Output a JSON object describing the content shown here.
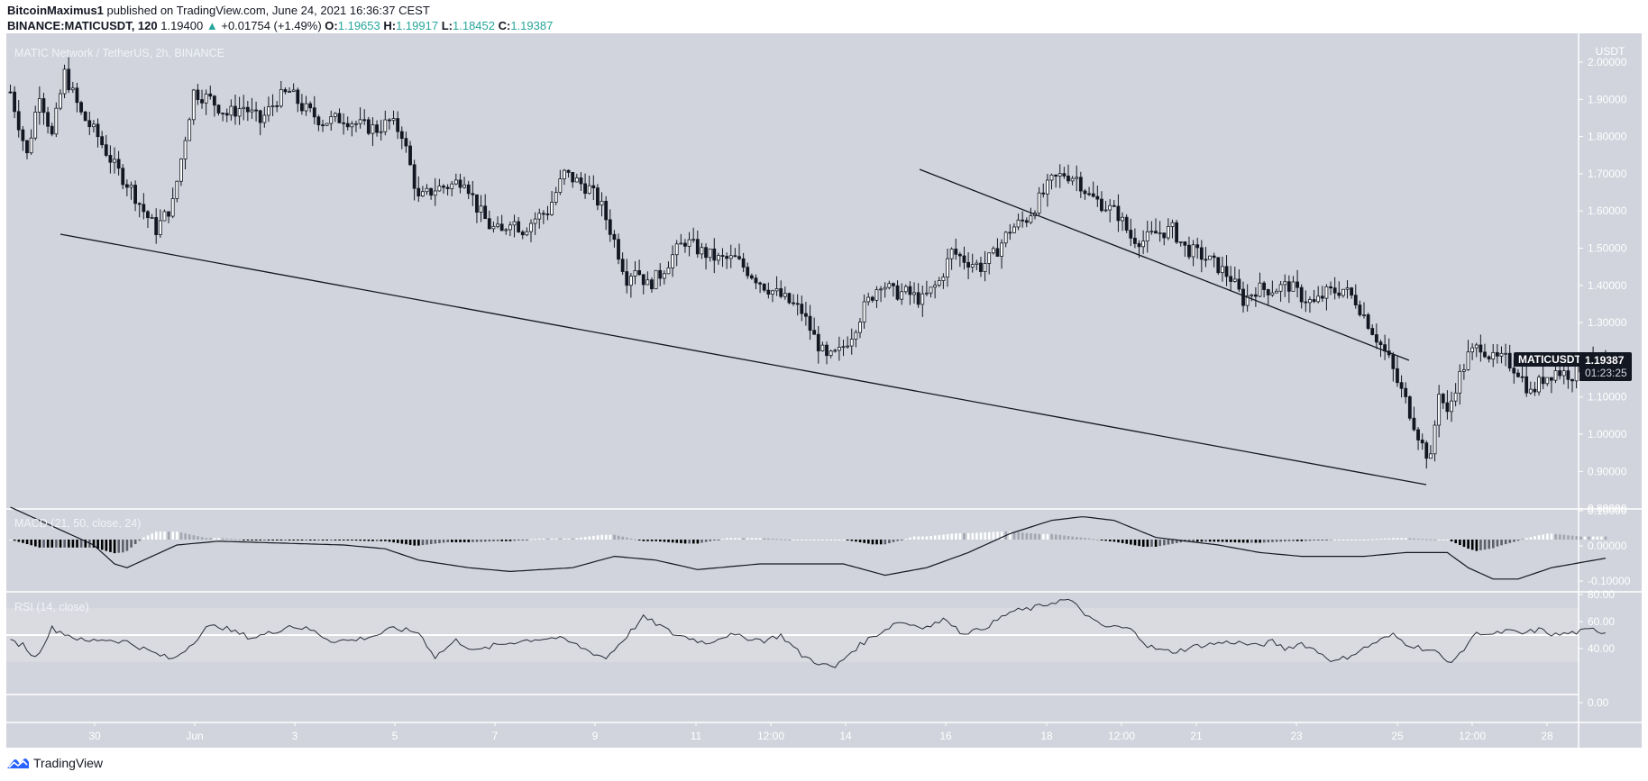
{
  "header": {
    "author": "BitcoinMaximus1",
    "published_text": "published on TradingView.com, June 24, 2021 16:36:37 CEST",
    "symbol_line": "BINANCE:MATICUSDT, 120",
    "last": "1.19400",
    "change_arrow": "▲",
    "change": "+0.01754 (+1.49%)",
    "o_label": "O:",
    "o": "1.19653",
    "h_label": "H:",
    "h": "1.19917",
    "l_label": "L:",
    "l": "1.18452",
    "c_label": "C:",
    "c": "1.19387"
  },
  "chart_title": "MATIC Network / TetherUS, 2h, BINANCE",
  "macd_label": "MACD (21, 50, close, 24)",
  "rsi_label": "RSI (14, close)",
  "symbol_tag": "MATICUSDT",
  "price_tag": {
    "price": "1.19387",
    "countdown": "01:23:25"
  },
  "footer": {
    "brand": "TradingView"
  },
  "colors": {
    "pane_bg": "#d1d4dc",
    "rsi_band": "#d9dbe1",
    "candle_up_fill": "#ffffff",
    "candle_down_fill": "#131722",
    "line": "#131722",
    "grid_sep": "#ffffff",
    "axis_text": "#ffffff",
    "logo_blue": "#2962ff"
  },
  "chart_data": [
    {
      "type": "candlestick",
      "title": "MATIC Network / TetherUS, 2h, BINANCE",
      "ylabel": "USDT",
      "ylim": [
        0.78,
        2.02
      ],
      "yticks": [
        "2.00000",
        "1.90000",
        "1.80000",
        "1.70000",
        "1.60000",
        "1.50000",
        "1.40000",
        "1.30000",
        "1.20000",
        "1.10000",
        "1.00000",
        "0.90000",
        "0.80000"
      ],
      "xticks": [
        "30",
        "Jun",
        "3",
        "5",
        "7",
        "9",
        "11",
        "12:00",
        "14",
        "16",
        "18",
        "12:00",
        "21",
        "23",
        "25",
        "12:00",
        "28"
      ],
      "close_path": [
        [
          0,
          1.92
        ],
        [
          8,
          1.75
        ],
        [
          14,
          1.92
        ],
        [
          20,
          1.8
        ],
        [
          26,
          1.97
        ],
        [
          34,
          1.86
        ],
        [
          42,
          1.8
        ],
        [
          50,
          1.72
        ],
        [
          58,
          1.66
        ],
        [
          64,
          1.6
        ],
        [
          70,
          1.55
        ],
        [
          78,
          1.62
        ],
        [
          84,
          1.8
        ],
        [
          88,
          1.92
        ],
        [
          96,
          1.9
        ],
        [
          104,
          1.86
        ],
        [
          112,
          1.88
        ],
        [
          120,
          1.84
        ],
        [
          128,
          1.9
        ],
        [
          134,
          1.92
        ],
        [
          140,
          1.88
        ],
        [
          150,
          1.84
        ],
        [
          160,
          1.85
        ],
        [
          168,
          1.83
        ],
        [
          176,
          1.82
        ],
        [
          182,
          1.84
        ],
        [
          188,
          1.81
        ],
        [
          196,
          1.63
        ],
        [
          204,
          1.66
        ],
        [
          212,
          1.67
        ],
        [
          218,
          1.69
        ],
        [
          224,
          1.61
        ],
        [
          230,
          1.56
        ],
        [
          236,
          1.54
        ],
        [
          240,
          1.58
        ],
        [
          246,
          1.55
        ],
        [
          252,
          1.58
        ],
        [
          258,
          1.6
        ],
        [
          266,
          1.7
        ],
        [
          272,
          1.68
        ],
        [
          278,
          1.66
        ],
        [
          284,
          1.61
        ],
        [
          290,
          1.52
        ],
        [
          296,
          1.42
        ],
        [
          300,
          1.45
        ],
        [
          306,
          1.4
        ],
        [
          312,
          1.43
        ],
        [
          318,
          1.48
        ],
        [
          324,
          1.52
        ],
        [
          332,
          1.49
        ],
        [
          340,
          1.47
        ],
        [
          348,
          1.47
        ],
        [
          354,
          1.44
        ],
        [
          362,
          1.4
        ],
        [
          370,
          1.37
        ],
        [
          380,
          1.33
        ],
        [
          386,
          1.26
        ],
        [
          392,
          1.2
        ],
        [
          398,
          1.22
        ],
        [
          404,
          1.27
        ],
        [
          410,
          1.34
        ],
        [
          418,
          1.41
        ],
        [
          424,
          1.38
        ],
        [
          430,
          1.38
        ],
        [
          438,
          1.36
        ],
        [
          446,
          1.41
        ],
        [
          452,
          1.49
        ],
        [
          458,
          1.47
        ],
        [
          466,
          1.45
        ],
        [
          472,
          1.48
        ],
        [
          480,
          1.55
        ],
        [
          488,
          1.58
        ],
        [
          494,
          1.63
        ],
        [
          500,
          1.68
        ],
        [
          506,
          1.7
        ],
        [
          512,
          1.69
        ],
        [
          518,
          1.64
        ],
        [
          524,
          1.62
        ],
        [
          532,
          1.59
        ],
        [
          538,
          1.53
        ],
        [
          544,
          1.52
        ],
        [
          550,
          1.54
        ],
        [
          558,
          1.55
        ],
        [
          564,
          1.5
        ],
        [
          572,
          1.48
        ],
        [
          580,
          1.45
        ],
        [
          586,
          1.42
        ],
        [
          592,
          1.36
        ],
        [
          598,
          1.39
        ],
        [
          606,
          1.39
        ],
        [
          614,
          1.4
        ],
        [
          620,
          1.37
        ],
        [
          626,
          1.35
        ],
        [
          632,
          1.38
        ],
        [
          640,
          1.39
        ],
        [
          646,
          1.36
        ],
        [
          652,
          1.3
        ],
        [
          658,
          1.24
        ],
        [
          662,
          1.2
        ],
        [
          666,
          1.14
        ],
        [
          670,
          1.09
        ],
        [
          674,
          1.03
        ],
        [
          678,
          0.97
        ],
        [
          682,
          0.93
        ],
        [
          686,
          1.12
        ],
        [
          690,
          1.05
        ],
        [
          694,
          1.13
        ],
        [
          700,
          1.21
        ],
        [
          706,
          1.24
        ],
        [
          712,
          1.2
        ],
        [
          718,
          1.2
        ],
        [
          724,
          1.17
        ],
        [
          730,
          1.11
        ],
        [
          736,
          1.15
        ],
        [
          742,
          1.17
        ],
        [
          750,
          1.16
        ],
        [
          756,
          1.19
        ],
        [
          762,
          1.19
        ],
        [
          766,
          1.19
        ]
      ],
      "trendlines": [
        {
          "name": "support",
          "from": [
            "May 29",
            1.53
          ],
          "to": [
            "Jun 25",
            0.85
          ]
        },
        {
          "name": "resistance",
          "from": [
            "Jun 15",
            1.71
          ],
          "to": [
            "Jun 24",
            1.19
          ]
        }
      ],
      "last_price": 1.19387
    },
    {
      "type": "line+histogram",
      "title": "MACD (21, 50, close, 24)",
      "ylim": [
        -0.16,
        0.11
      ],
      "yticks": [
        "0.10000",
        "0.00000",
        "-0.10000"
      ],
      "macd_path": [
        [
          0,
          0.1
        ],
        [
          20,
          0.05
        ],
        [
          40,
          0.0
        ],
        [
          50,
          -0.05
        ],
        [
          56,
          -0.06
        ],
        [
          64,
          -0.04
        ],
        [
          80,
          0.0
        ],
        [
          100,
          0.01
        ],
        [
          130,
          0.005
        ],
        [
          160,
          0.0
        ],
        [
          180,
          -0.01
        ],
        [
          196,
          -0.04
        ],
        [
          220,
          -0.06
        ],
        [
          240,
          -0.07
        ],
        [
          270,
          -0.06
        ],
        [
          290,
          -0.03
        ],
        [
          310,
          -0.04
        ],
        [
          330,
          -0.065
        ],
        [
          360,
          -0.05
        ],
        [
          400,
          -0.05
        ],
        [
          420,
          -0.08
        ],
        [
          440,
          -0.06
        ],
        [
          460,
          -0.02
        ],
        [
          480,
          0.03
        ],
        [
          500,
          0.065
        ],
        [
          515,
          0.075
        ],
        [
          530,
          0.065
        ],
        [
          550,
          0.02
        ],
        [
          580,
          0.0
        ],
        [
          600,
          -0.02
        ],
        [
          620,
          -0.03
        ],
        [
          650,
          -0.03
        ],
        [
          670,
          -0.02
        ],
        [
          690,
          -0.02
        ],
        [
          700,
          -0.06
        ],
        [
          712,
          -0.09
        ],
        [
          724,
          -0.09
        ],
        [
          740,
          -0.06
        ],
        [
          766,
          -0.035
        ]
      ],
      "signal_offset_note": "histogram = macd - signal"
    },
    {
      "type": "line",
      "title": "RSI (14, close)",
      "ylim": [
        0,
        80
      ],
      "yticks": [
        "80.00",
        "60.00",
        "40.00",
        "0.00"
      ],
      "bands": {
        "upper": 70,
        "middle": 50,
        "lower": 30
      },
      "rsi_path": [
        [
          0,
          45
        ],
        [
          6,
          43
        ],
        [
          12,
          33
        ],
        [
          20,
          55
        ],
        [
          28,
          50
        ],
        [
          36,
          45
        ],
        [
          44,
          47
        ],
        [
          56,
          45
        ],
        [
          70,
          36
        ],
        [
          78,
          32
        ],
        [
          86,
          42
        ],
        [
          94,
          55
        ],
        [
          100,
          57
        ],
        [
          108,
          52
        ],
        [
          116,
          48
        ],
        [
          126,
          52
        ],
        [
          134,
          57
        ],
        [
          144,
          54
        ],
        [
          154,
          46
        ],
        [
          164,
          46
        ],
        [
          176,
          50
        ],
        [
          184,
          55
        ],
        [
          196,
          52
        ],
        [
          204,
          34
        ],
        [
          214,
          46
        ],
        [
          224,
          38
        ],
        [
          232,
          42
        ],
        [
          242,
          45
        ],
        [
          252,
          47
        ],
        [
          262,
          48
        ],
        [
          270,
          44
        ],
        [
          278,
          38
        ],
        [
          286,
          33
        ],
        [
          294,
          46
        ],
        [
          304,
          63
        ],
        [
          312,
          57
        ],
        [
          318,
          51
        ],
        [
          326,
          48
        ],
        [
          334,
          44
        ],
        [
          344,
          50
        ],
        [
          354,
          48
        ],
        [
          362,
          46
        ],
        [
          370,
          50
        ],
        [
          380,
          35
        ],
        [
          390,
          28
        ],
        [
          396,
          26
        ],
        [
          404,
          38
        ],
        [
          412,
          47
        ],
        [
          420,
          54
        ],
        [
          426,
          60
        ],
        [
          432,
          58
        ],
        [
          440,
          56
        ],
        [
          450,
          62
        ],
        [
          456,
          52
        ],
        [
          464,
          53
        ],
        [
          472,
          59
        ],
        [
          480,
          67
        ],
        [
          488,
          69
        ],
        [
          494,
          71
        ],
        [
          502,
          75
        ],
        [
          508,
          76
        ],
        [
          514,
          69
        ],
        [
          520,
          60
        ],
        [
          526,
          56
        ],
        [
          532,
          56
        ],
        [
          540,
          53
        ],
        [
          546,
          42
        ],
        [
          554,
          38
        ],
        [
          560,
          38
        ],
        [
          570,
          42
        ],
        [
          580,
          44
        ],
        [
          588,
          45
        ],
        [
          598,
          42
        ],
        [
          606,
          45
        ],
        [
          612,
          40
        ],
        [
          620,
          44
        ],
        [
          630,
          36
        ],
        [
          636,
          30
        ],
        [
          642,
          34
        ],
        [
          650,
          40
        ],
        [
          656,
          45
        ],
        [
          664,
          50
        ],
        [
          670,
          44
        ],
        [
          676,
          41
        ],
        [
          684,
          38
        ],
        [
          690,
          30
        ],
        [
          696,
          35
        ],
        [
          702,
          49
        ],
        [
          706,
          52
        ],
        [
          712,
          50
        ],
        [
          718,
          53
        ],
        [
          726,
          51
        ],
        [
          734,
          54
        ],
        [
          742,
          50
        ],
        [
          752,
          52
        ],
        [
          760,
          54
        ],
        [
          766,
          52
        ]
      ]
    }
  ]
}
